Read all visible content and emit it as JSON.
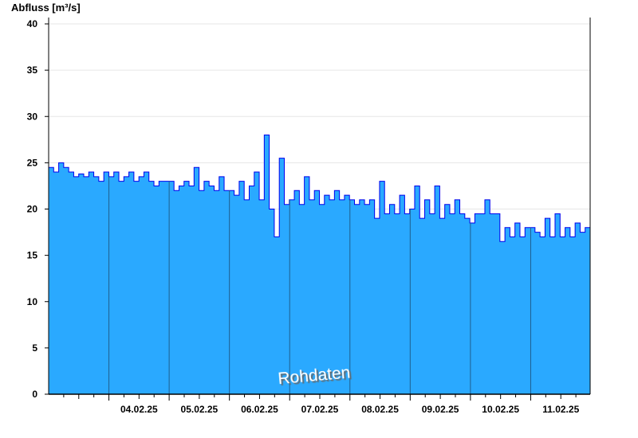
{
  "chart_data": {
    "type": "area",
    "ylabel": "Abfluss [m³/s]",
    "ylim": [
      0,
      40
    ],
    "yticks": [
      0,
      5,
      10,
      15,
      20,
      25,
      30,
      35,
      40
    ],
    "x_start": "03.02.25 00:00",
    "x_end": "12.02.25 00:00",
    "x_step_hours": 2,
    "xtick_labels": [
      "04.02.25",
      "05.02.25",
      "06.02.25",
      "07.02.25",
      "08.02.25",
      "09.02.25",
      "10.02.25",
      "11.02.25"
    ],
    "grid": true,
    "annotation": "Rohdaten",
    "colors": {
      "fill": "#2aa9ff",
      "line": "#0000ee",
      "grid": "#e6e6e6",
      "day_divider": "#1f5f8f"
    },
    "values": [
      24.5,
      24,
      25,
      24.5,
      24,
      23.5,
      23.8,
      23.5,
      24,
      23.5,
      23,
      24,
      23.5,
      24,
      23,
      23.5,
      24,
      23,
      23.5,
      24,
      23,
      22.5,
      23,
      23,
      23,
      22,
      22.5,
      23,
      22.5,
      24.5,
      22,
      23,
      22.5,
      22,
      23.5,
      22,
      22,
      21.5,
      23,
      21,
      22.5,
      24,
      21,
      28,
      20,
      17,
      25.5,
      20.5,
      21,
      22,
      20.5,
      23.5,
      21,
      22,
      20.5,
      21.5,
      21,
      22,
      21,
      21.5,
      21,
      20.5,
      21,
      20.5,
      21,
      19,
      23,
      19.5,
      20.5,
      19.5,
      21.5,
      19.5,
      20,
      22.5,
      19,
      21,
      19.5,
      22.5,
      19,
      20.5,
      19.5,
      21,
      19.5,
      19,
      18.5,
      19.5,
      19.5,
      21,
      19.5,
      19.5,
      16.5,
      18,
      17,
      18.5,
      17,
      18,
      18,
      17.5,
      17,
      19,
      17,
      19.5,
      17,
      18,
      17,
      18.5,
      17.5,
      18
    ]
  }
}
